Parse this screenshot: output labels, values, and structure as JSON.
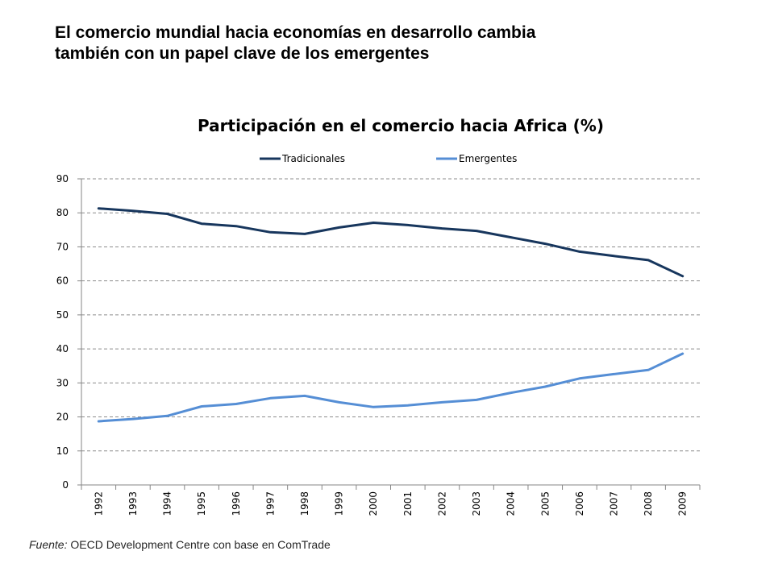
{
  "slide": {
    "title_line1": "El comercio mundial hacia economías en desarrollo cambia",
    "title_line2": "también con un papel clave de los emergentes",
    "source_label": "Fuente:",
    "source_text": " OECD Development Centre con base en ComTrade"
  },
  "chart_data": {
    "type": "line",
    "title": "Participación en el comercio hacia Africa (%)",
    "xlabel": "",
    "ylabel": "",
    "x": [
      "1992",
      "1993",
      "1994",
      "1995",
      "1996",
      "1997",
      "1998",
      "1999",
      "2000",
      "2001",
      "2002",
      "2003",
      "2004",
      "2005",
      "2006",
      "2007",
      "2008",
      "2009"
    ],
    "ylim": [
      0,
      90
    ],
    "yticks": [
      0,
      10,
      20,
      30,
      40,
      50,
      60,
      70,
      80,
      90
    ],
    "grid": true,
    "legend_position": "top",
    "series": [
      {
        "name": "Tradicionales",
        "color": "#17365d",
        "values": [
          81.3,
          80.6,
          79.7,
          76.8,
          76.1,
          74.3,
          73.8,
          75.7,
          77.1,
          76.4,
          75.4,
          74.7,
          72.8,
          70.9,
          68.6,
          67.3,
          66.1,
          61.4
        ]
      },
      {
        "name": "Emergentes",
        "color": "#558ed5",
        "values": [
          18.7,
          19.4,
          20.3,
          23.1,
          23.8,
          25.5,
          26.2,
          24.3,
          22.9,
          23.4,
          24.3,
          25.0,
          27.1,
          28.9,
          31.3,
          32.6,
          33.8,
          38.6
        ]
      }
    ]
  }
}
